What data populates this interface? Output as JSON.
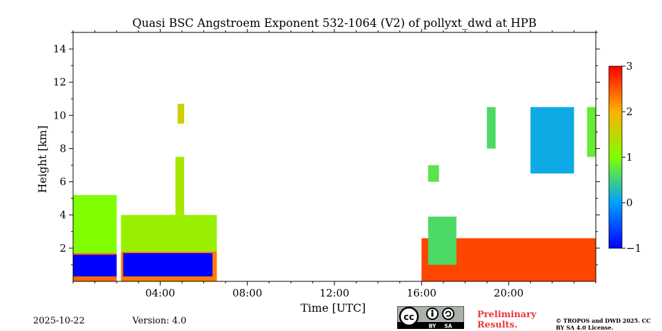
{
  "chart_data": {
    "type": "heatmap",
    "title": "Quasi BSC Angstroem Exponent 532-1064 (V2) of pollyxt_dwd at HPB",
    "xlabel": "Time [UTC]",
    "ylabel": "Height [km]",
    "xlim": [
      0,
      24
    ],
    "ylim": [
      0,
      15
    ],
    "x_tick_labels": [
      "04:00",
      "08:00",
      "12:00",
      "16:00",
      "20:00"
    ],
    "x_ticks": [
      4,
      8,
      12,
      16,
      20
    ],
    "y_tick_labels": [
      "2",
      "4",
      "6",
      "8",
      "10",
      "12",
      "14"
    ],
    "y_ticks": [
      2,
      4,
      6,
      8,
      10,
      12,
      14
    ],
    "colorbar": {
      "min": -1,
      "max": 3,
      "tick_labels": [
        "3",
        "2",
        "1",
        "0",
        "−1"
      ],
      "ticks": [
        3,
        2,
        1,
        0,
        -1
      ],
      "colormap": "jet"
    },
    "regions": [
      {
        "x": [
          0.0,
          2.0
        ],
        "y": [
          0.0,
          1.7
        ],
        "value": 2.4
      },
      {
        "x": [
          0.0,
          2.0
        ],
        "y": [
          0.3,
          1.6
        ],
        "value": -1.0
      },
      {
        "x": [
          0.0,
          2.0
        ],
        "y": [
          1.7,
          5.2
        ],
        "value": 1.0
      },
      {
        "x": [
          2.2,
          6.6
        ],
        "y": [
          0.0,
          1.8
        ],
        "value": 2.3
      },
      {
        "x": [
          2.3,
          6.4
        ],
        "y": [
          0.3,
          1.7
        ],
        "value": -1.0
      },
      {
        "x": [
          2.2,
          6.6
        ],
        "y": [
          1.8,
          4.0
        ],
        "value": 1.2
      },
      {
        "x": [
          4.7,
          5.1
        ],
        "y": [
          4.0,
          7.5
        ],
        "value": 1.3
      },
      {
        "x": [
          4.8,
          5.1
        ],
        "y": [
          9.5,
          10.7
        ],
        "value": 1.6
      },
      {
        "x": [
          16.0,
          24.0
        ],
        "y": [
          0.0,
          2.6
        ],
        "value": 2.6
      },
      {
        "x": [
          16.3,
          17.6
        ],
        "y": [
          1.0,
          3.9
        ],
        "value": 0.6
      },
      {
        "x": [
          16.3,
          16.8
        ],
        "y": [
          6.0,
          7.0
        ],
        "value": 0.7
      },
      {
        "x": [
          19.0,
          19.4
        ],
        "y": [
          8.0,
          10.5
        ],
        "value": 0.6
      },
      {
        "x": [
          21.0,
          23.0
        ],
        "y": [
          6.5,
          10.5
        ],
        "value": 0.1
      },
      {
        "x": [
          23.6,
          24.0
        ],
        "y": [
          7.5,
          10.5
        ],
        "value": 0.8
      }
    ]
  },
  "footer": {
    "date": "2025-10-22",
    "version": "Version: 4.0",
    "preliminary": "Preliminary Results.",
    "copyright": "© TROPOS and DWD 2025. CC BY SA 4.0 License.",
    "license_badge": {
      "by": "BY",
      "sa": "SA"
    }
  }
}
